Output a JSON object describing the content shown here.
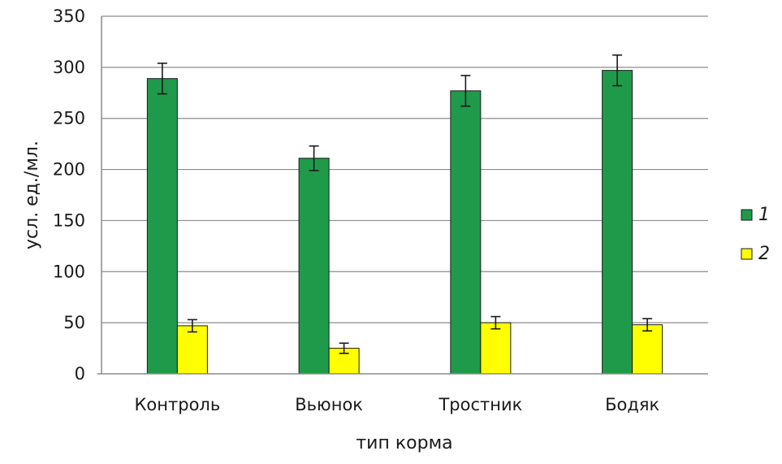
{
  "chart_data": {
    "type": "bar",
    "categories": [
      "Контроль",
      "Вьюнок",
      "Тростник",
      "Бодяк"
    ],
    "series": [
      {
        "name": "1",
        "color": "#1f9a4a",
        "values": [
          289,
          211,
          277,
          297
        ],
        "errors": [
          15,
          12,
          15,
          15
        ]
      },
      {
        "name": "2",
        "color": "#ffff00",
        "values": [
          47,
          25,
          50,
          48
        ],
        "errors": [
          6,
          5,
          6,
          6
        ]
      }
    ],
    "title": "",
    "xlabel": "тип корма",
    "ylabel": "усл. ед./мл.",
    "ylim": [
      0,
      350
    ],
    "yticks": [
      0,
      50,
      100,
      150,
      200,
      250,
      300,
      350
    ],
    "grid": true,
    "legend_position": "right"
  }
}
